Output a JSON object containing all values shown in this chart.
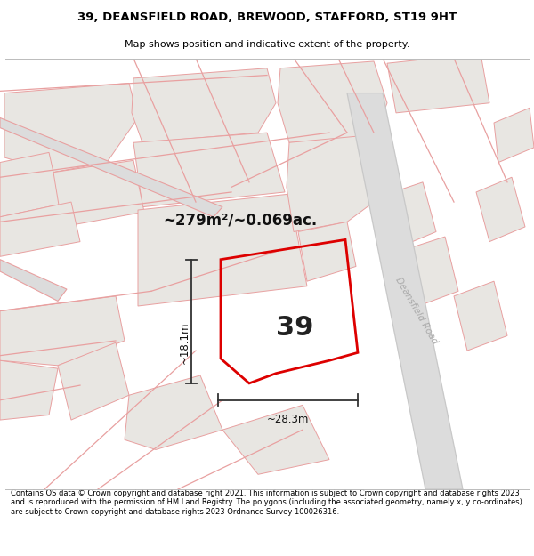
{
  "title_line1": "39, DEANSFIELD ROAD, BREWOOD, STAFFORD, ST19 9HT",
  "title_line2": "Map shows position and indicative extent of the property.",
  "area_label": "~279m²/~0.069ac.",
  "plot_number": "39",
  "dim_width": "~28.3m",
  "dim_height": "~18.1m",
  "road_label": "Deansfield Road",
  "footer_text": "Contains OS data © Crown copyright and database right 2021. This information is subject to Crown copyright and database rights 2023 and is reproduced with the permission of HM Land Registry. The polygons (including the associated geometry, namely x, y co-ordinates) are subject to Crown copyright and database rights 2023 Ordnance Survey 100026316.",
  "map_bg": "#f5f3f1",
  "road_line_color": "#e8a0a0",
  "road_gray_color": "#c8c8c8",
  "plot_outline_color": "#dd0000",
  "parcel_fill": "#e8e6e2",
  "parcel_outline": "#e8a0a0",
  "white_bg": "#ffffff",
  "text_color": "#000000",
  "dim_color": "#333333"
}
